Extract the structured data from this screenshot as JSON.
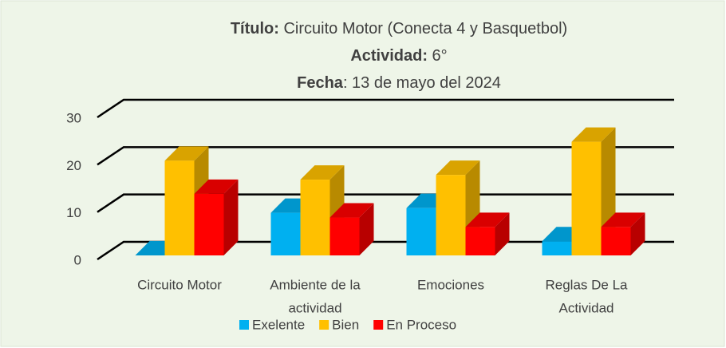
{
  "chart_data": {
    "type": "bar3d",
    "title_lines": [
      {
        "bold": "Título:",
        "text": " Circuito Motor (Conecta 4 y Basquetbol)"
      },
      {
        "bold": "Actividad:",
        "text": " 6°"
      },
      {
        "bold": "Fecha",
        "text": ": 13 de mayo del 2024"
      }
    ],
    "categories": [
      [
        "Circuito Motor"
      ],
      [
        "Ambiente de la",
        "actividad"
      ],
      [
        "Emociones"
      ],
      [
        "Reglas  De La",
        "Actividad"
      ]
    ],
    "series": [
      {
        "name": "Exelente",
        "color": "#00b0f0",
        "values": [
          0,
          9,
          10,
          3
        ]
      },
      {
        "name": "Bien",
        "color": "#ffc000",
        "values": [
          20,
          16,
          17,
          24
        ]
      },
      {
        "name": "En Proceso",
        "color": "#ff0000",
        "values": [
          13,
          8,
          6,
          6
        ]
      }
    ],
    "ylim": [
      0,
      30
    ],
    "yticks": [
      0,
      10,
      20,
      30
    ],
    "grid": true,
    "legend": "bottom"
  }
}
